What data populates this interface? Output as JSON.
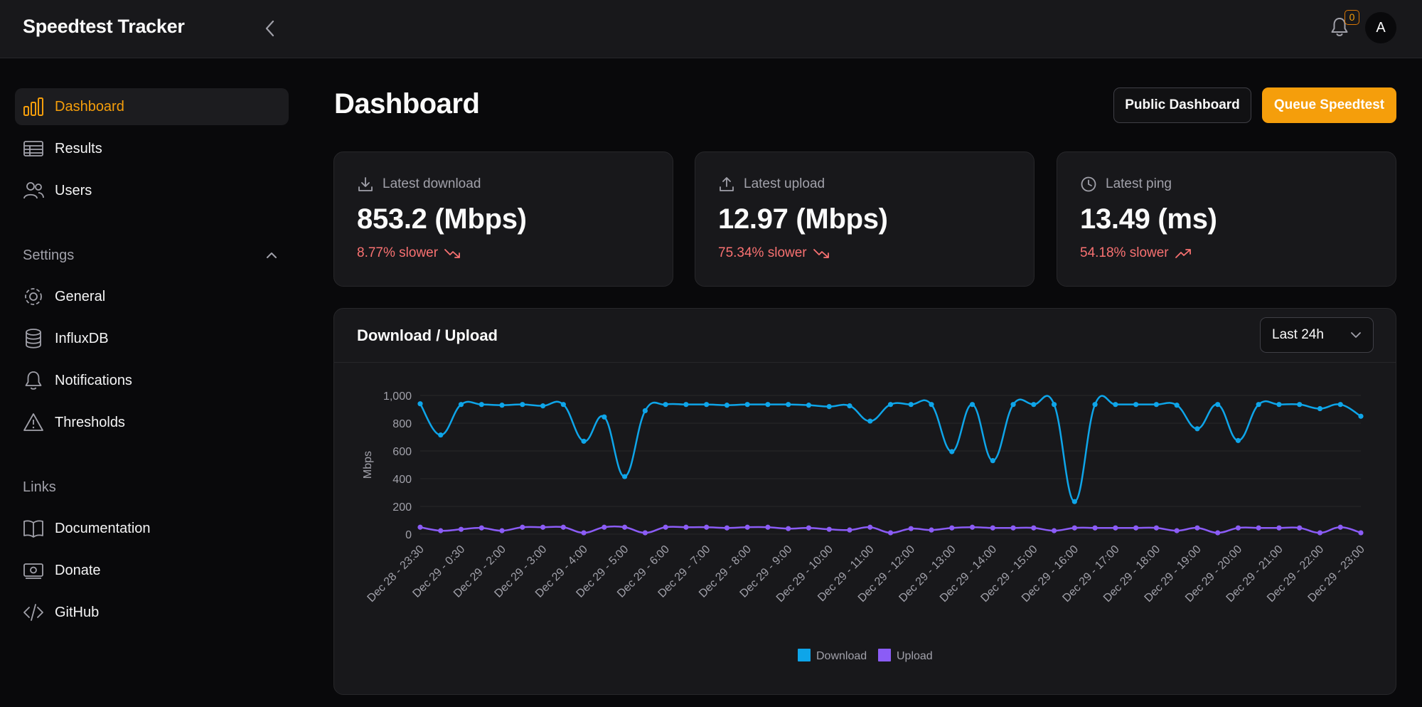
{
  "app": {
    "title": "Speedtest Tracker",
    "notification_count": "0",
    "avatar_initial": "A"
  },
  "sidebar": {
    "items": [
      {
        "label": "Dashboard",
        "icon": "bar-chart-icon",
        "active": true
      },
      {
        "label": "Results",
        "icon": "table-icon"
      },
      {
        "label": "Users",
        "icon": "users-icon"
      }
    ],
    "settings_label": "Settings",
    "settings_items": [
      {
        "label": "General",
        "icon": "gear-icon"
      },
      {
        "label": "InfluxDB",
        "icon": "database-icon"
      },
      {
        "label": "Notifications",
        "icon": "bell-icon"
      },
      {
        "label": "Thresholds",
        "icon": "warning-icon"
      }
    ],
    "links_label": "Links",
    "links_items": [
      {
        "label": "Documentation",
        "icon": "book-icon"
      },
      {
        "label": "Donate",
        "icon": "money-icon"
      },
      {
        "label": "GitHub",
        "icon": "code-icon"
      }
    ]
  },
  "header": {
    "title": "Dashboard",
    "public_dashboard": "Public Dashboard",
    "queue_speedtest": "Queue Speedtest"
  },
  "stats": [
    {
      "label": "Latest download",
      "value": "853.2 (Mbps)",
      "delta": "8.77% slower",
      "trend": "down"
    },
    {
      "label": "Latest upload",
      "value": "12.97 (Mbps)",
      "delta": "75.34% slower",
      "trend": "down"
    },
    {
      "label": "Latest ping",
      "value": "13.49 (ms)",
      "delta": "54.18% slower",
      "trend": "up"
    }
  ],
  "chart_card": {
    "title": "Download / Upload",
    "range": "Last 24h"
  },
  "colors": {
    "accent": "#f59e0b",
    "download": "#0ea5e9",
    "upload": "#8b5cf6",
    "negative": "#f87171"
  },
  "chart_data": {
    "type": "line",
    "ylabel": "Mbps",
    "ylim": [
      0,
      1000
    ],
    "yticks": [
      0,
      200,
      400,
      600,
      800,
      1000
    ],
    "ytick_labels": [
      "0",
      "200",
      "400",
      "600",
      "800",
      "1,000"
    ],
    "x_labels": [
      "Dec 28 - 23:30",
      "Dec 29 - 0:30",
      "Dec 29 - 2:00",
      "Dec 29 - 3:00",
      "Dec 29 - 4:00",
      "Dec 29 - 5:00",
      "Dec 29 - 6:00",
      "Dec 29 - 7:00",
      "Dec 29 - 8:00",
      "Dec 29 - 9:00",
      "Dec 29 - 10:00",
      "Dec 29 - 11:00",
      "Dec 29 - 12:00",
      "Dec 29 - 13:00",
      "Dec 29 - 14:00",
      "Dec 29 - 15:00",
      "Dec 29 - 16:00",
      "Dec 29 - 17:00",
      "Dec 29 - 18:00",
      "Dec 29 - 19:00",
      "Dec 29 - 20:00",
      "Dec 29 - 21:00",
      "Dec 29 - 22:00",
      "Dec 29 - 23:00"
    ],
    "legend": [
      "Download",
      "Upload"
    ],
    "legend_position": "bottom",
    "series": [
      {
        "name": "Download",
        "values": [
          940,
          715,
          935,
          935,
          930,
          935,
          925,
          935,
          670,
          845,
          415,
          890,
          935,
          935,
          935,
          930,
          935,
          935,
          935,
          930,
          920,
          925,
          815,
          935,
          935,
          935,
          595,
          935,
          530,
          935,
          935,
          935,
          235,
          935,
          935,
          935,
          935,
          930,
          760,
          935,
          675,
          935,
          935,
          935,
          905,
          935,
          850
        ]
      },
      {
        "name": "Upload",
        "values": [
          50,
          25,
          35,
          45,
          25,
          50,
          50,
          50,
          10,
          50,
          50,
          10,
          50,
          50,
          50,
          45,
          50,
          50,
          40,
          45,
          35,
          30,
          50,
          10,
          40,
          30,
          45,
          50,
          45,
          45,
          45,
          25,
          45,
          45,
          45,
          45,
          45,
          25,
          45,
          10,
          45,
          45,
          45,
          45,
          10,
          50,
          10
        ]
      }
    ]
  }
}
